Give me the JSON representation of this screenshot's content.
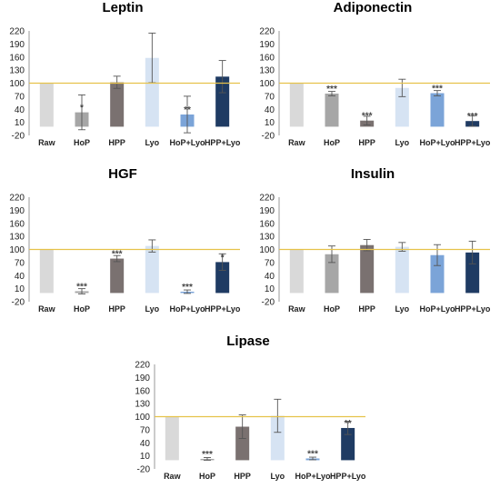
{
  "colors": {
    "Raw": "#d9d9d9",
    "HoP": "#a6a6a6",
    "HPP": "#7a7170",
    "Lyo": "#d6e3f3",
    "HoP+Lyo": "#7ba4d8",
    "HPP+Lyo": "#1f3b63",
    "reference": "#e6c24a",
    "axis": "#9a9a9a",
    "error": "#555555"
  },
  "chart_data": [
    {
      "type": "bar",
      "title": "Leptin",
      "categories": [
        "Raw",
        "HoP",
        "HPP",
        "Lyo",
        "HoP+Lyo",
        "HPP+Lyo"
      ],
      "values": [
        100,
        33,
        102,
        158,
        28,
        115
      ],
      "errors": [
        0,
        40,
        14,
        57,
        42,
        37
      ],
      "significance": [
        "",
        "*",
        "",
        "",
        "**",
        ""
      ],
      "ylim": [
        -20,
        220
      ],
      "yticks": [
        -20,
        10,
        40,
        70,
        100,
        130,
        160,
        190,
        220
      ],
      "reference_line": 100
    },
    {
      "type": "bar",
      "title": "Adiponectin",
      "categories": [
        "Raw",
        "HoP",
        "HPP",
        "Lyo",
        "HoP+Lyo",
        "HPP+Lyo"
      ],
      "values": [
        100,
        76,
        14,
        89,
        77,
        13
      ],
      "errors": [
        0,
        5,
        10,
        20,
        6,
        12
      ],
      "significance": [
        "",
        "***",
        "***",
        "",
        "***",
        "***"
      ],
      "ylim": [
        -20,
        220
      ],
      "yticks": [
        -20,
        10,
        40,
        70,
        100,
        130,
        160,
        190,
        220
      ],
      "reference_line": 100
    },
    {
      "type": "bar",
      "title": "HGF",
      "categories": [
        "Raw",
        "HoP",
        "HPP",
        "Lyo",
        "HoP+Lyo",
        "HPP+Lyo"
      ],
      "values": [
        100,
        4,
        79,
        108,
        3,
        71
      ],
      "errors": [
        0,
        6,
        7,
        14,
        4,
        19
      ],
      "significance": [
        "",
        "***",
        "***",
        "",
        "***",
        "*"
      ],
      "ylim": [
        -20,
        220
      ],
      "yticks": [
        -20,
        10,
        40,
        70,
        100,
        130,
        160,
        190,
        220
      ],
      "reference_line": 100
    },
    {
      "type": "bar",
      "title": "Insulin",
      "categories": [
        "Raw",
        "HoP",
        "HPP",
        "Lyo",
        "HoP+Lyo",
        "HPP+Lyo"
      ],
      "values": [
        100,
        89,
        110,
        106,
        87,
        93
      ],
      "errors": [
        0,
        19,
        13,
        10,
        24,
        26
      ],
      "significance": [
        "",
        "",
        "",
        "",
        "",
        ""
      ],
      "ylim": [
        -20,
        220
      ],
      "yticks": [
        -20,
        10,
        40,
        70,
        100,
        130,
        160,
        190,
        220
      ],
      "reference_line": 100
    },
    {
      "type": "bar",
      "title": "Lipase",
      "categories": [
        "Raw",
        "HoP",
        "HPP",
        "Lyo",
        "HoP+Lyo",
        "HPP+Lyo"
      ],
      "values": [
        100,
        3,
        77,
        102,
        4,
        74
      ],
      "errors": [
        0,
        3,
        27,
        38,
        3,
        15
      ],
      "significance": [
        "",
        "***",
        "",
        "",
        "***",
        "**"
      ],
      "ylim": [
        -20,
        220
      ],
      "yticks": [
        -20,
        10,
        40,
        70,
        100,
        130,
        160,
        190,
        220
      ],
      "reference_line": 100
    }
  ]
}
